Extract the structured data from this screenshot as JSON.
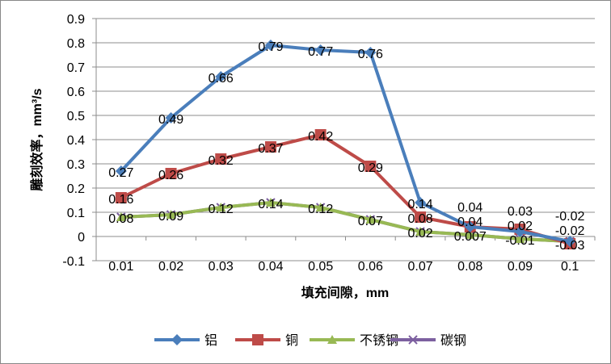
{
  "chart_data": {
    "type": "line",
    "title": "",
    "xlabel": "填充间隙，mm",
    "ylabel": "雕刻效率，mm³/s",
    "categories": [
      "0.01",
      "0.02",
      "0.03",
      "0.04",
      "0.05",
      "0.06",
      "0.07",
      "0.08",
      "0.09",
      "0.1"
    ],
    "ylim": [
      -0.1,
      0.9
    ],
    "yticks": [
      "-0.1",
      "0",
      "0.1",
      "0.2",
      "0.3",
      "0.4",
      "0.5",
      "0.6",
      "0.7",
      "0.8",
      "0.9"
    ],
    "grid": true,
    "legend_position": "bottom",
    "series": [
      {
        "name": "铝",
        "color": "#4a7ebb",
        "marker": "diamond",
        "values": [
          0.27,
          0.49,
          0.66,
          0.79,
          0.77,
          0.76,
          0.14,
          0.04,
          0.02,
          -0.02
        ],
        "labels": [
          "0.27",
          "0.49",
          "0.66",
          "0.79",
          "0.77",
          "0.76",
          "0.14",
          "0.04",
          "0.02",
          "-0.02"
        ]
      },
      {
        "name": "铜",
        "color": "#be4b48",
        "marker": "square",
        "values": [
          0.16,
          0.26,
          0.32,
          0.37,
          0.42,
          0.29,
          0.08,
          0.04,
          0.03,
          -0.03
        ],
        "labels": [
          "0.16",
          "0.26",
          "0.32",
          "0.37",
          "0.42",
          "0.29",
          "0.08",
          "0.04",
          "0.03",
          "-0.03"
        ]
      },
      {
        "name": "不锈钢",
        "color": "#98b954",
        "marker": "triangle",
        "values": [
          0.08,
          0.09,
          0.12,
          0.14,
          0.12,
          0.07,
          0.02,
          0.007,
          -0.01,
          -0.02
        ],
        "labels": [
          "0.08",
          "0.09",
          "0.12",
          "0.14",
          "0.12",
          "0.07",
          "0.02",
          "0.007",
          "-0.01",
          "-0.02"
        ]
      },
      {
        "name": "碳钢",
        "color": "#7d60a0",
        "marker": "x",
        "values": [
          0.08,
          0.09,
          0.12,
          0.14,
          0.12,
          0.07,
          0.02,
          0.007,
          -0.01,
          -0.02
        ]
      }
    ]
  }
}
